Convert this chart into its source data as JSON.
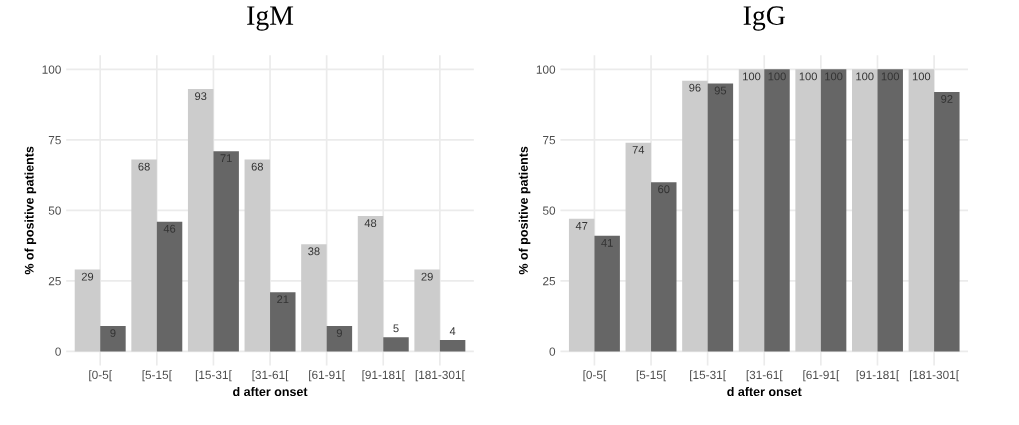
{
  "chart_data": [
    {
      "type": "bar",
      "title": "IgM",
      "xlabel": "d after onset",
      "ylabel": "% of positive patients",
      "categories": [
        "[0-5[",
        "[5-15[",
        "[15-31[",
        "[31-61[",
        "[61-91[",
        "[91-181[",
        "[181-301["
      ],
      "series": [
        {
          "color": "#cccccc",
          "values": [
            29,
            68,
            93,
            68,
            38,
            48,
            29
          ]
        },
        {
          "color": "#666666",
          "values": [
            9,
            46,
            71,
            21,
            9,
            5,
            4
          ]
        }
      ],
      "ylim": [
        -5,
        105
      ],
      "yticks": [
        0,
        25,
        50,
        75,
        100
      ],
      "grid": true,
      "data_labels": true
    },
    {
      "type": "bar",
      "title": "IgG",
      "xlabel": "d after onset",
      "ylabel": "% of positive patients",
      "categories": [
        "[0-5[",
        "[5-15[",
        "[15-31[",
        "[31-61[",
        "[61-91[",
        "[91-181[",
        "[181-301["
      ],
      "series": [
        {
          "color": "#cccccc",
          "values": [
            47,
            74,
            96,
            100,
            100,
            100,
            100
          ]
        },
        {
          "color": "#666666",
          "values": [
            41,
            60,
            95,
            100,
            100,
            100,
            92
          ]
        }
      ],
      "ylim": [
        -5,
        105
      ],
      "yticks": [
        0,
        25,
        50,
        75,
        100
      ],
      "grid": true,
      "data_labels": true
    }
  ]
}
